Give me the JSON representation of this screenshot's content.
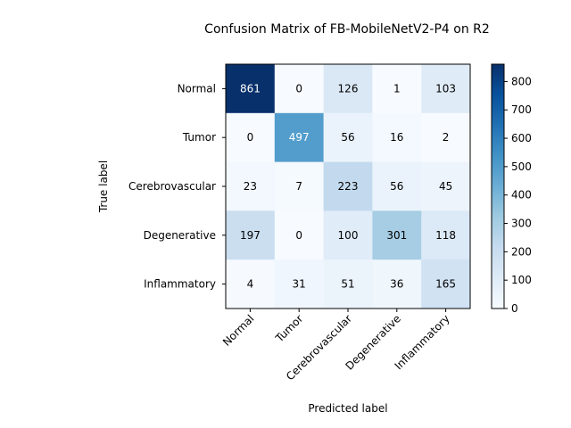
{
  "chart_data": {
    "type": "heatmap",
    "title": "Confusion Matrix of FB-MobileNetV2-P4 on R2",
    "xlabel": "Predicted label",
    "ylabel": "True label",
    "x_categories": [
      "Normal",
      "Tumor",
      "Cerebrovascular",
      "Degenerative",
      "Inflammatory"
    ],
    "y_categories": [
      "Normal",
      "Tumor",
      "Cerebrovascular",
      "Degenerative",
      "Inflammatory"
    ],
    "values": [
      [
        861,
        0,
        126,
        1,
        103
      ],
      [
        0,
        497,
        56,
        16,
        2
      ],
      [
        23,
        7,
        223,
        56,
        45
      ],
      [
        197,
        0,
        100,
        301,
        118
      ],
      [
        4,
        31,
        51,
        36,
        165
      ]
    ],
    "colormap": "Blues",
    "colorbar": {
      "range": [
        0,
        861
      ],
      "ticks": [
        0,
        100,
        200,
        300,
        400,
        500,
        600,
        700,
        800
      ]
    }
  }
}
